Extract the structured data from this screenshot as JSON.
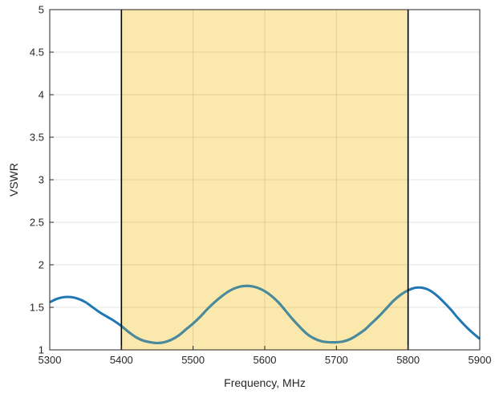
{
  "chart_data": {
    "type": "line",
    "xlabel": "Frequency, MHz",
    "ylabel": "VSWR",
    "xlim": [
      5300,
      5900
    ],
    "ylim": [
      1,
      5
    ],
    "x_ticks": [
      5300,
      5400,
      5500,
      5600,
      5700,
      5800,
      5900
    ],
    "y_ticks": [
      1,
      1.5,
      2,
      2.5,
      3,
      3.5,
      4,
      4.5,
      5
    ],
    "y_tick_labels": [
      "1",
      "1.5",
      "2",
      "2.5",
      "3",
      "3.5",
      "4",
      "4.5",
      "5"
    ],
    "grid": true,
    "band": {
      "x_start": 5400,
      "x_end": 5800,
      "color": "#fbe8ac"
    },
    "colors": {
      "line": "#1f77b4",
      "line_in_band": "#4a8a9a",
      "band_edge": "#000000",
      "grid": "#e3e3e3"
    },
    "series": [
      {
        "x": [
          5300,
          5310,
          5320,
          5330,
          5340,
          5350,
          5360,
          5370,
          5380,
          5390,
          5400,
          5410,
          5420,
          5430,
          5440,
          5450,
          5460,
          5470,
          5480,
          5490,
          5500,
          5510,
          5520,
          5530,
          5540,
          5550,
          5560,
          5570,
          5580,
          5590,
          5600,
          5610,
          5620,
          5630,
          5640,
          5650,
          5660,
          5670,
          5680,
          5690,
          5700,
          5710,
          5720,
          5730,
          5740,
          5750,
          5760,
          5770,
          5780,
          5790,
          5800,
          5810,
          5820,
          5830,
          5840,
          5850,
          5860,
          5870,
          5880,
          5890,
          5900
        ],
        "values": [
          1.56,
          1.6,
          1.62,
          1.62,
          1.6,
          1.56,
          1.5,
          1.44,
          1.39,
          1.34,
          1.28,
          1.21,
          1.15,
          1.11,
          1.09,
          1.08,
          1.09,
          1.12,
          1.17,
          1.24,
          1.31,
          1.39,
          1.48,
          1.56,
          1.63,
          1.69,
          1.73,
          1.75,
          1.75,
          1.73,
          1.69,
          1.63,
          1.55,
          1.45,
          1.35,
          1.26,
          1.18,
          1.13,
          1.1,
          1.09,
          1.09,
          1.1,
          1.13,
          1.18,
          1.24,
          1.32,
          1.4,
          1.49,
          1.58,
          1.65,
          1.7,
          1.73,
          1.73,
          1.7,
          1.64,
          1.56,
          1.47,
          1.37,
          1.28,
          1.2,
          1.13
        ]
      }
    ]
  }
}
